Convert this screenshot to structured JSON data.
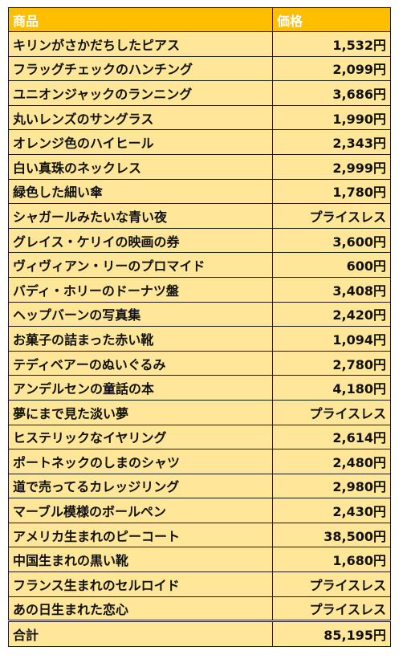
{
  "header": {
    "item_label": "商品",
    "price_label": "価格"
  },
  "rows": [
    {
      "item": "キリンがさかだちしたピアス",
      "price": "1,532円"
    },
    {
      "item": "フラッグチェックのハンチング",
      "price": "2,099円"
    },
    {
      "item": "ユニオンジャックのランニング",
      "price": "3,686円"
    },
    {
      "item": "丸いレンズのサングラス",
      "price": "1,990円"
    },
    {
      "item": "オレンジ色のハイヒール",
      "price": "2,343円"
    },
    {
      "item": "白い真珠のネックレス",
      "price": "2,999円"
    },
    {
      "item": "緑色した細い傘",
      "price": "1,780円"
    },
    {
      "item": "シャガールみたいな青い夜",
      "price": "プライスレス"
    },
    {
      "item": "グレイス・ケリイの映画の券",
      "price": "3,600円"
    },
    {
      "item": "ヴィヴィアン・リーのプロマイド",
      "price": "600円"
    },
    {
      "item": "バディ・ホリーのドーナツ盤",
      "price": "3,408円"
    },
    {
      "item": "ヘップバーンの写真集",
      "price": "2,420円"
    },
    {
      "item": "お菓子の詰まった赤い靴",
      "price": "1,094円"
    },
    {
      "item": "テディベアーのぬいぐるみ",
      "price": "2,780円"
    },
    {
      "item": "アンデルセンの童話の本",
      "price": "4,180円"
    },
    {
      "item": "夢にまで見た淡い夢",
      "price": "プライスレス"
    },
    {
      "item": "ヒステリックなイヤリング",
      "price": "2,614円"
    },
    {
      "item": "ポートネックのしまのシャツ",
      "price": "2,480円"
    },
    {
      "item": "道で売ってるカレッジリング",
      "price": "2,980円"
    },
    {
      "item": "マーブル模様のボールペン",
      "price": "2,430円"
    },
    {
      "item": "アメリカ生まれのピーコート",
      "price": "38,500円"
    },
    {
      "item": "中国生まれの黒い靴",
      "price": "1,680円"
    },
    {
      "item": "フランス生まれのセルロイド",
      "price": "プライスレス"
    },
    {
      "item": "あの日生まれた恋心",
      "price": "プライスレス"
    }
  ],
  "footer": {
    "total_label": "合計",
    "total_value": "85,195円"
  },
  "colors": {
    "header_bg": "#ffbf00",
    "row_bg": "#ffe699",
    "header_text": "#ffffff",
    "border": "#1a1a1a"
  }
}
